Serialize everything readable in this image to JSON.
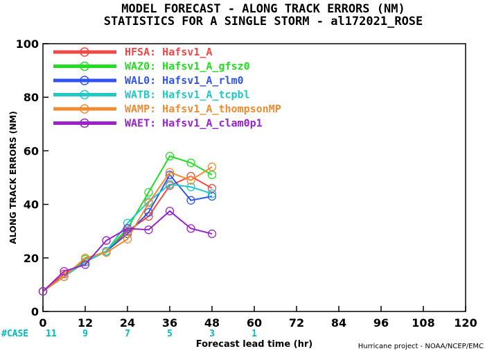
{
  "header": {
    "title_line1": "MODEL FORECAST - ALONG TRACK ERRORS (NM)",
    "title_line2": "STATISTICS FOR A SINGLE STORM - al172021_ROSE"
  },
  "footer": {
    "credit": "Hurricane project - NOAA/NCEP/EMC"
  },
  "colors": {
    "case_text": "#00bcbc"
  },
  "chart_data": {
    "type": "line",
    "title": "MODEL FORECAST - ALONG TRACK ERRORS (NM)",
    "subtitle": "STATISTICS FOR A SINGLE STORM - al172021_ROSE",
    "xlabel": "Forecast lead time (hr)",
    "ylabel": "ALONG TRACK ERRORS (NM)",
    "xlim": [
      0,
      120
    ],
    "ylim": [
      0,
      100
    ],
    "xticks": [
      "0",
      "12",
      "24",
      "36",
      "48",
      "60",
      "72",
      "84",
      "96",
      "108",
      "120"
    ],
    "yticks": [
      "0",
      "20",
      "40",
      "60",
      "80",
      "100"
    ],
    "grid": false,
    "legend_position": "top-left",
    "case_label": "#CASE",
    "cases": [
      {
        "x": 0,
        "label": "11"
      },
      {
        "x": 12,
        "label": "9"
      },
      {
        "x": 24,
        "label": "7"
      },
      {
        "x": 36,
        "label": "5"
      },
      {
        "x": 48,
        "label": "3"
      },
      {
        "x": 60,
        "label": "1"
      }
    ],
    "x": [
      0,
      6,
      12,
      18,
      24,
      30,
      36,
      42,
      48
    ],
    "series": [
      {
        "id": "HFSA",
        "label": "HFSA: Hafsv1_A",
        "color": "#f04848",
        "values": [
          7.5,
          14,
          18.5,
          22.5,
          30,
          35.5,
          47,
          50.5,
          46
        ]
      },
      {
        "id": "WAZ0",
        "label": "WAZ0: Hafsv1_A_gfsz0",
        "color": "#22dd22",
        "values": [
          7.5,
          13,
          19.5,
          22.5,
          31,
          44.5,
          58,
          55.5,
          51
        ]
      },
      {
        "id": "WAL0",
        "label": "WAL0: Hafsv1_A_rlm0",
        "color": "#2f55ee",
        "values": [
          7.5,
          13,
          18.5,
          22.5,
          29,
          37,
          51,
          41.5,
          43
        ]
      },
      {
        "id": "WATB",
        "label": "WATB: Hafsv1_A_tcpbl",
        "color": "#22c8c8",
        "values": [
          7.5,
          13,
          18.5,
          22.5,
          33,
          41,
          47.5,
          46.5,
          44
        ]
      },
      {
        "id": "WAMP",
        "label": "WAMP: Hafsv1_A_thompsonMP",
        "color": "#ee8c32",
        "values": [
          7.5,
          13,
          20,
          22,
          27,
          40.5,
          52,
          49,
          54
        ]
      },
      {
        "id": "WAET",
        "label": "WAET: Hafsv1_A_clam0p1",
        "color": "#9a22c8",
        "values": [
          7.5,
          15,
          17.5,
          26.5,
          31,
          30.5,
          37.5,
          31,
          29
        ]
      }
    ]
  }
}
